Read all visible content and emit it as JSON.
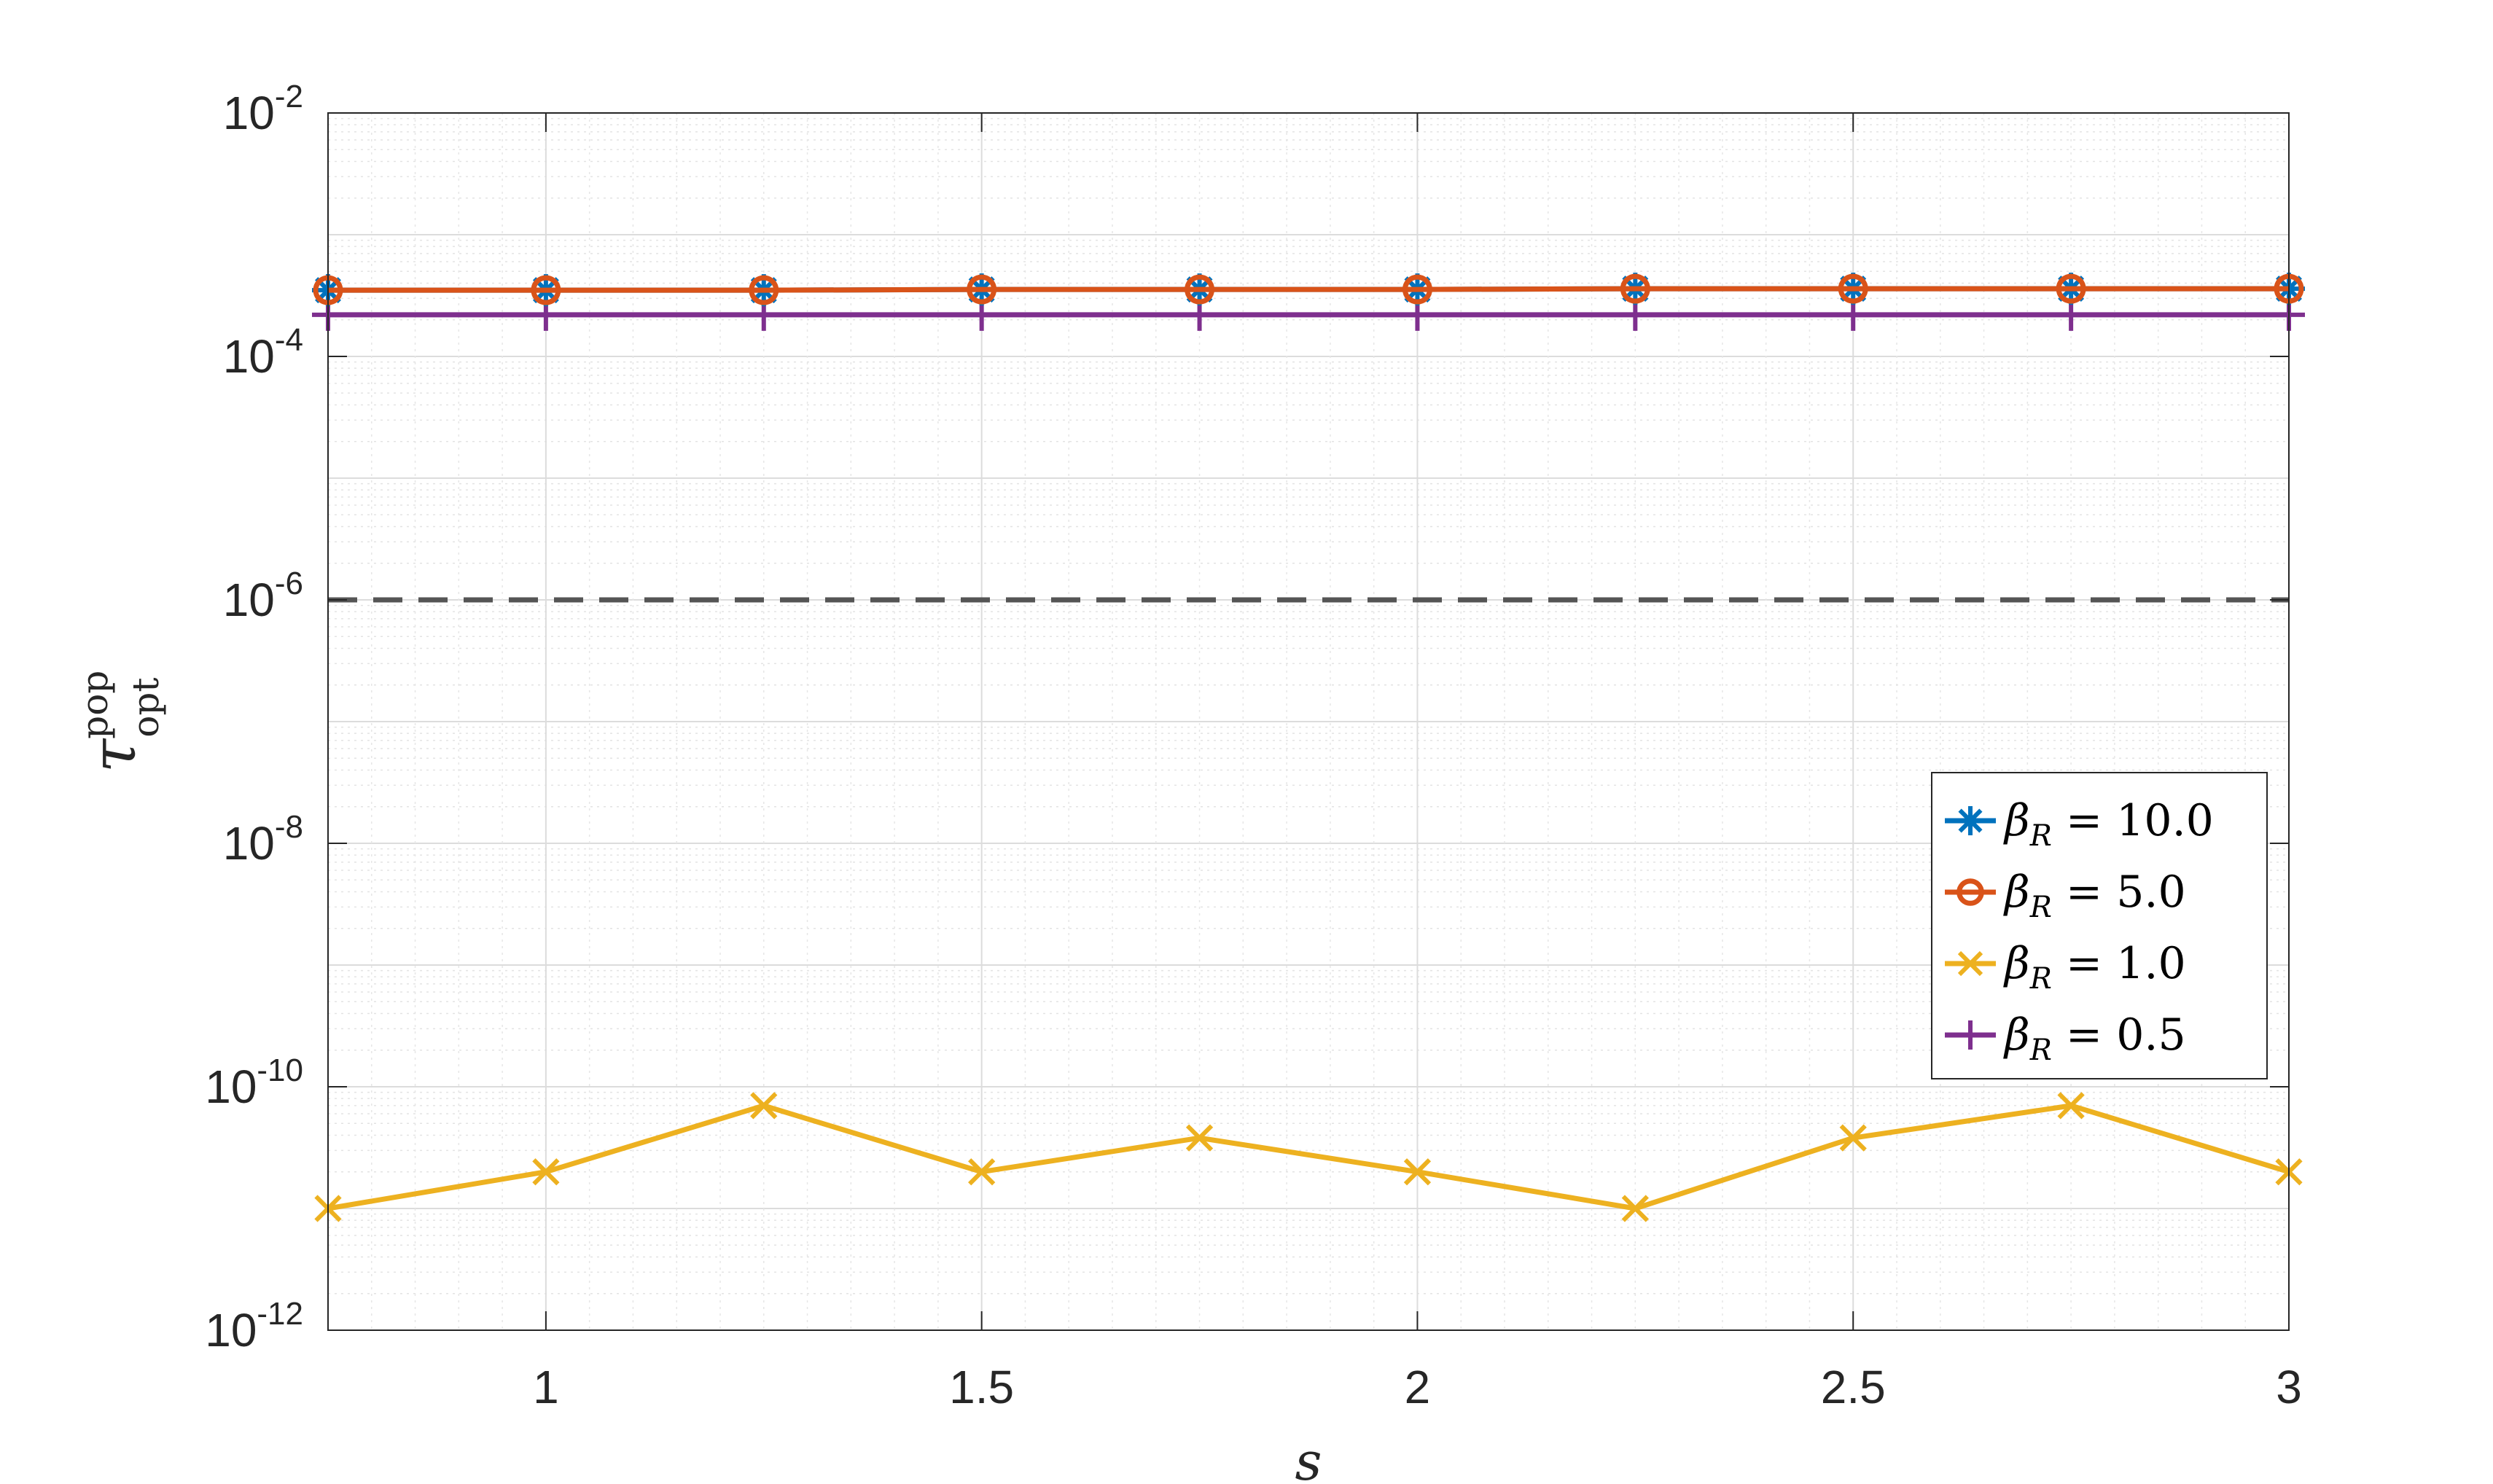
{
  "chart_data": {
    "type": "line",
    "xlabel": "s",
    "ylabel": {
      "base": "τ",
      "sup": "pop",
      "sub": "opt"
    },
    "x": [
      0.75,
      1.0,
      1.25,
      1.5,
      1.75,
      2.0,
      2.25,
      2.5,
      2.75,
      3.0
    ],
    "xlim": [
      0.75,
      3.0
    ],
    "ylim": [
      1e-12,
      0.01
    ],
    "yscale": "log",
    "grid": true,
    "xticks": [
      {
        "value": 1,
        "label": "1"
      },
      {
        "value": 1.5,
        "label": "1.5"
      },
      {
        "value": 2,
        "label": "2"
      },
      {
        "value": 2.5,
        "label": "2.5"
      },
      {
        "value": 3,
        "label": "3"
      }
    ],
    "yticks": [
      {
        "exp": -12,
        "base": "10",
        "sup": "-12"
      },
      {
        "exp": -10,
        "base": "10",
        "sup": "-10"
      },
      {
        "exp": -8,
        "base": "10",
        "sup": "-8"
      },
      {
        "exp": -6,
        "base": "10",
        "sup": "-6"
      },
      {
        "exp": -4,
        "base": "10",
        "sup": "-4"
      },
      {
        "exp": -2,
        "base": "10",
        "sup": "-2"
      }
    ],
    "legend_position": "right",
    "series": [
      {
        "name": "β_R = 10.0",
        "legend_symbol": "β",
        "legend_sub": "R",
        "legend_rest": " = 10.0",
        "color": "#0072BD",
        "marker": "asterisk",
        "values": [
          0.00035,
          0.00035,
          0.00035,
          0.000355,
          0.000355,
          0.000355,
          0.00036,
          0.00036,
          0.00036,
          0.00036
        ]
      },
      {
        "name": "β_R = 5.0",
        "legend_symbol": "β",
        "legend_sub": "R",
        "legend_rest": " = 5.0",
        "color": "#D95319",
        "marker": "circle",
        "values": [
          0.00035,
          0.00035,
          0.00035,
          0.000355,
          0.000355,
          0.000355,
          0.00036,
          0.00036,
          0.00036,
          0.00036
        ]
      },
      {
        "name": "β_R = 1.0",
        "legend_symbol": "β",
        "legend_sub": "R",
        "legend_rest": " = 1.0",
        "color": "#EDB120",
        "marker": "x",
        "values": [
          1e-11,
          2e-11,
          7e-11,
          2e-11,
          3.8e-11,
          2e-11,
          1e-11,
          3.8e-11,
          7e-11,
          2e-11
        ]
      },
      {
        "name": "β_R = 0.5",
        "legend_symbol": "β",
        "legend_sub": "R",
        "legend_rest": " = 0.5",
        "color": "#7E2F8E",
        "marker": "plus",
        "values": [
          0.00022,
          0.00022,
          0.00022,
          0.00022,
          0.00022,
          0.00022,
          0.00022,
          0.00022,
          0.00022,
          0.00022
        ]
      }
    ],
    "reference_line": {
      "value": 1e-06,
      "style": "dashed",
      "color": "#555555"
    }
  }
}
